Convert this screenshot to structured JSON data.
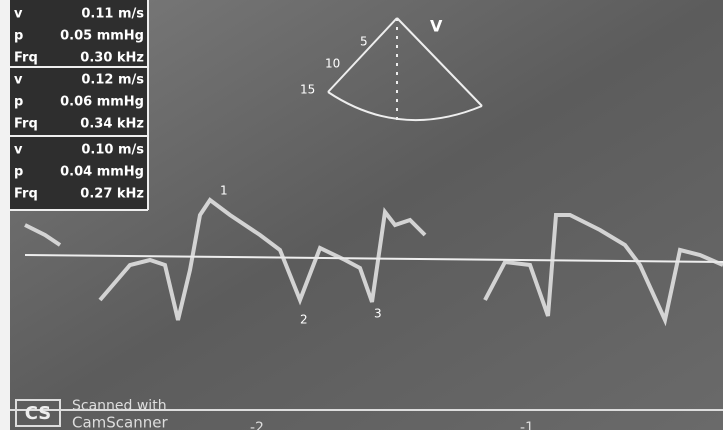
{
  "measurements": [
    [
      {
        "label": "v",
        "value": "0.11 m/s"
      },
      {
        "label": "p",
        "value": "0.05 mmHg"
      },
      {
        "label": "Frq",
        "value": "0.30 kHz"
      }
    ],
    [
      {
        "label": "v",
        "value": "0.12 m/s"
      },
      {
        "label": "p",
        "value": "0.06 mmHg"
      },
      {
        "label": "Frq",
        "value": "0.34 kHz"
      }
    ],
    [
      {
        "label": "v",
        "value": "0.10 m/s"
      },
      {
        "label": "p",
        "value": "0.04 mmHg"
      },
      {
        "label": "Frq",
        "value": "0.27 kHz"
      }
    ]
  ],
  "sector": {
    "mode": "V",
    "depths": [
      "5",
      "10",
      "15"
    ]
  },
  "markers": [
    "1",
    "2",
    "3"
  ],
  "time_axis": [
    "-2",
    "-1"
  ],
  "watermark": {
    "logo": "CS",
    "line1": "Scanned with",
    "line2": "CamScanner"
  }
}
